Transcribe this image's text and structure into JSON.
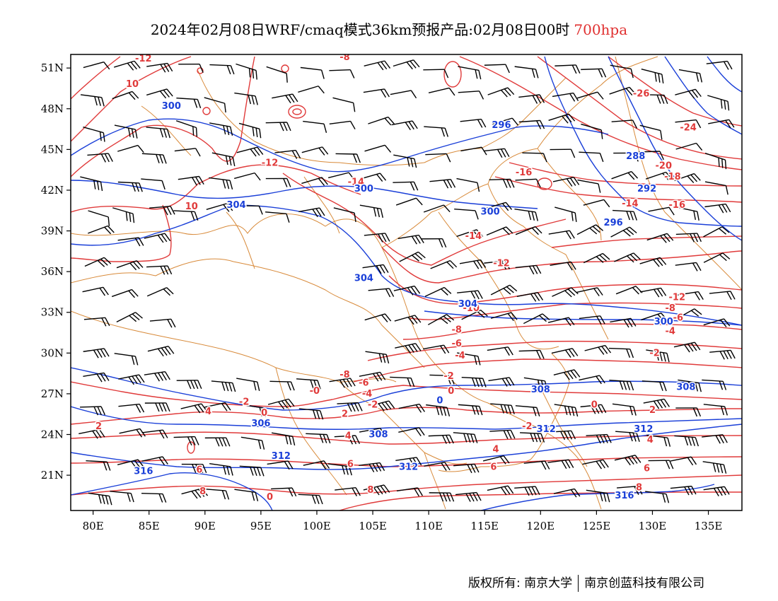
{
  "title": {
    "main": "2024年02月08日WRF/cmaq模式36km预报产品:02月08日00时",
    "level": "700hpa",
    "level_color": "#e03030"
  },
  "axes": {
    "lon_labels": [
      "80E",
      "85E",
      "90E",
      "95E",
      "100E",
      "105E",
      "110E",
      "115E",
      "120E",
      "125E",
      "130E",
      "135E"
    ],
    "lat_labels": [
      "51N",
      "48N",
      "45N",
      "42N",
      "39N",
      "36N",
      "33N",
      "30N",
      "27N",
      "24N",
      "21N"
    ],
    "lon_values": [
      80,
      85,
      90,
      95,
      100,
      105,
      110,
      115,
      120,
      125,
      130,
      135
    ],
    "lat_values": [
      51,
      48,
      45,
      42,
      39,
      36,
      33,
      30,
      27,
      24,
      21
    ],
    "lon_range": [
      78,
      138
    ],
    "lat_range": [
      18.4,
      52
    ]
  },
  "colors": {
    "temperature": "#e03a3a",
    "geopotential": "#1a3fd8",
    "border": "#d88a3a",
    "wind": "#000000"
  },
  "temperature_labels": [
    {
      "text": "-12",
      "lon": 84.5,
      "lat": 51.7
    },
    {
      "text": "-8",
      "lon": 102.5,
      "lat": 51.8
    },
    {
      "text": "10",
      "lon": 83.5,
      "lat": 49.8
    },
    {
      "text": "-12",
      "lon": 95.8,
      "lat": 44.0
    },
    {
      "text": "-14",
      "lon": 103.5,
      "lat": 42.6
    },
    {
      "text": "-16",
      "lon": 118.5,
      "lat": 43.3
    },
    {
      "text": "10",
      "lon": 88.8,
      "lat": 40.8
    },
    {
      "text": "-14",
      "lon": 114.0,
      "lat": 38.6
    },
    {
      "text": "-12",
      "lon": 116.5,
      "lat": 36.6
    },
    {
      "text": "-10",
      "lon": 113.8,
      "lat": 33.3
    },
    {
      "text": "-8",
      "lon": 112.5,
      "lat": 31.7
    },
    {
      "text": "-6",
      "lon": 112.5,
      "lat": 30.7
    },
    {
      "text": "-4",
      "lon": 112.8,
      "lat": 29.8
    },
    {
      "text": "-2",
      "lon": 111.8,
      "lat": 28.3
    },
    {
      "text": "0",
      "lon": 112.0,
      "lat": 27.2
    },
    {
      "text": "-8",
      "lon": 102.5,
      "lat": 28.4
    },
    {
      "text": "-6",
      "lon": 104.2,
      "lat": 27.8
    },
    {
      "text": "-0",
      "lon": 99.8,
      "lat": 27.2
    },
    {
      "text": "-4",
      "lon": 104.5,
      "lat": 27.0
    },
    {
      "text": "-2",
      "lon": 105.0,
      "lat": 26.2
    },
    {
      "text": "-2",
      "lon": 93.5,
      "lat": 26.4
    },
    {
      "text": "0",
      "lon": 95.3,
      "lat": 25.6
    },
    {
      "text": "2",
      "lon": 102.5,
      "lat": 25.5
    },
    {
      "text": "4",
      "lon": 102.8,
      "lat": 23.9
    },
    {
      "text": "2",
      "lon": 80.5,
      "lat": 24.6
    },
    {
      "text": "4",
      "lon": 90.3,
      "lat": 25.7
    },
    {
      "text": "6",
      "lon": 89.5,
      "lat": 21.4
    },
    {
      "text": "8",
      "lon": 89.8,
      "lat": 19.8
    },
    {
      "text": "0",
      "lon": 95.8,
      "lat": 19.4
    },
    {
      "text": "6",
      "lon": 103.0,
      "lat": 21.8
    },
    {
      "text": "8",
      "lon": 104.8,
      "lat": 19.9
    },
    {
      "text": "-2",
      "lon": 118.8,
      "lat": 24.6
    },
    {
      "text": "4",
      "lon": 116.0,
      "lat": 22.9
    },
    {
      "text": "6",
      "lon": 115.8,
      "lat": 21.6
    },
    {
      "text": "0",
      "lon": 124.8,
      "lat": 26.2
    },
    {
      "text": "2",
      "lon": 130.0,
      "lat": 25.8
    },
    {
      "text": "4",
      "lon": 129.8,
      "lat": 23.6
    },
    {
      "text": "6",
      "lon": 129.5,
      "lat": 21.5
    },
    {
      "text": "8",
      "lon": 128.8,
      "lat": 20.1
    },
    {
      "text": "-2",
      "lon": 130.2,
      "lat": 30.0
    },
    {
      "text": "-4",
      "lon": 131.6,
      "lat": 31.6
    },
    {
      "text": "-6",
      "lon": 132.3,
      "lat": 32.6
    },
    {
      "text": "-8",
      "lon": 131.6,
      "lat": 33.3
    },
    {
      "text": "-12",
      "lon": 132.2,
      "lat": 34.1
    },
    {
      "text": "-16",
      "lon": 132.2,
      "lat": 40.9
    },
    {
      "text": "-14",
      "lon": 128.0,
      "lat": 41.0
    },
    {
      "text": "-18",
      "lon": 131.8,
      "lat": 43.0
    },
    {
      "text": "-20",
      "lon": 131.0,
      "lat": 43.8
    },
    {
      "text": "-24",
      "lon": 133.2,
      "lat": 46.6
    },
    {
      "text": "-26",
      "lon": 129.0,
      "lat": 49.1
    }
  ],
  "height_labels": [
    {
      "text": "300",
      "lon": 87.0,
      "lat": 48.2
    },
    {
      "text": "296",
      "lon": 116.5,
      "lat": 46.8
    },
    {
      "text": "288",
      "lon": 128.5,
      "lat": 44.5
    },
    {
      "text": "292",
      "lon": 129.5,
      "lat": 42.1
    },
    {
      "text": "300",
      "lon": 104.2,
      "lat": 42.1
    },
    {
      "text": "304",
      "lon": 92.8,
      "lat": 40.9
    },
    {
      "text": "300",
      "lon": 115.5,
      "lat": 40.4
    },
    {
      "text": "296",
      "lon": 126.5,
      "lat": 39.6
    },
    {
      "text": "304",
      "lon": 104.2,
      "lat": 35.5
    },
    {
      "text": "304",
      "lon": 113.5,
      "lat": 33.6
    },
    {
      "text": "300",
      "lon": 131.0,
      "lat": 32.3
    },
    {
      "text": "308",
      "lon": 133.0,
      "lat": 27.5
    },
    {
      "text": "308",
      "lon": 120.0,
      "lat": 27.3
    },
    {
      "text": "0",
      "lon": 111.0,
      "lat": 26.5
    },
    {
      "text": "306",
      "lon": 95.0,
      "lat": 24.8
    },
    {
      "text": "308",
      "lon": 105.5,
      "lat": 24.0
    },
    {
      "text": "312",
      "lon": 120.5,
      "lat": 24.4
    },
    {
      "text": "312",
      "lon": 129.2,
      "lat": 24.4
    },
    {
      "text": "312",
      "lon": 96.8,
      "lat": 22.4
    },
    {
      "text": "312",
      "lon": 108.2,
      "lat": 21.6
    },
    {
      "text": "316",
      "lon": 84.5,
      "lat": 21.3
    },
    {
      "text": "316",
      "lon": 127.5,
      "lat": 19.5
    }
  ],
  "footer": {
    "left": "版权所有: 南京大学",
    "right": "南京创蓝科技有限公司"
  }
}
